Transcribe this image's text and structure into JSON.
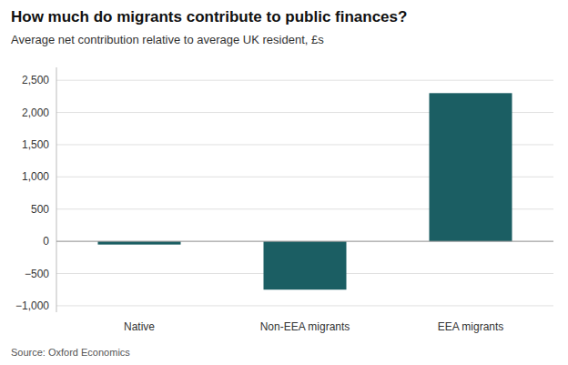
{
  "chart_data": {
    "type": "bar",
    "title": "How much do migrants contribute to public finances?",
    "subtitle": "Average net contribution relative to average UK resident, £s",
    "source": "Source: Oxford Economics",
    "categories": [
      "Native",
      "Non-EEA migrants",
      "EEA migrants"
    ],
    "values": [
      -50,
      -750,
      2300
    ],
    "color": "#1b5e63",
    "ylim": [
      -1100,
      2700
    ],
    "yticks": [
      {
        "value": -1000,
        "label": "−1,000"
      },
      {
        "value": -500,
        "label": "−500"
      },
      0,
      500,
      {
        "value": 1000,
        "label": "1,000"
      },
      {
        "value": 1500,
        "label": "1,500"
      },
      {
        "value": 2000,
        "label": "2,000"
      },
      {
        "value": 2500,
        "label": "2,500"
      }
    ],
    "grid": true
  }
}
